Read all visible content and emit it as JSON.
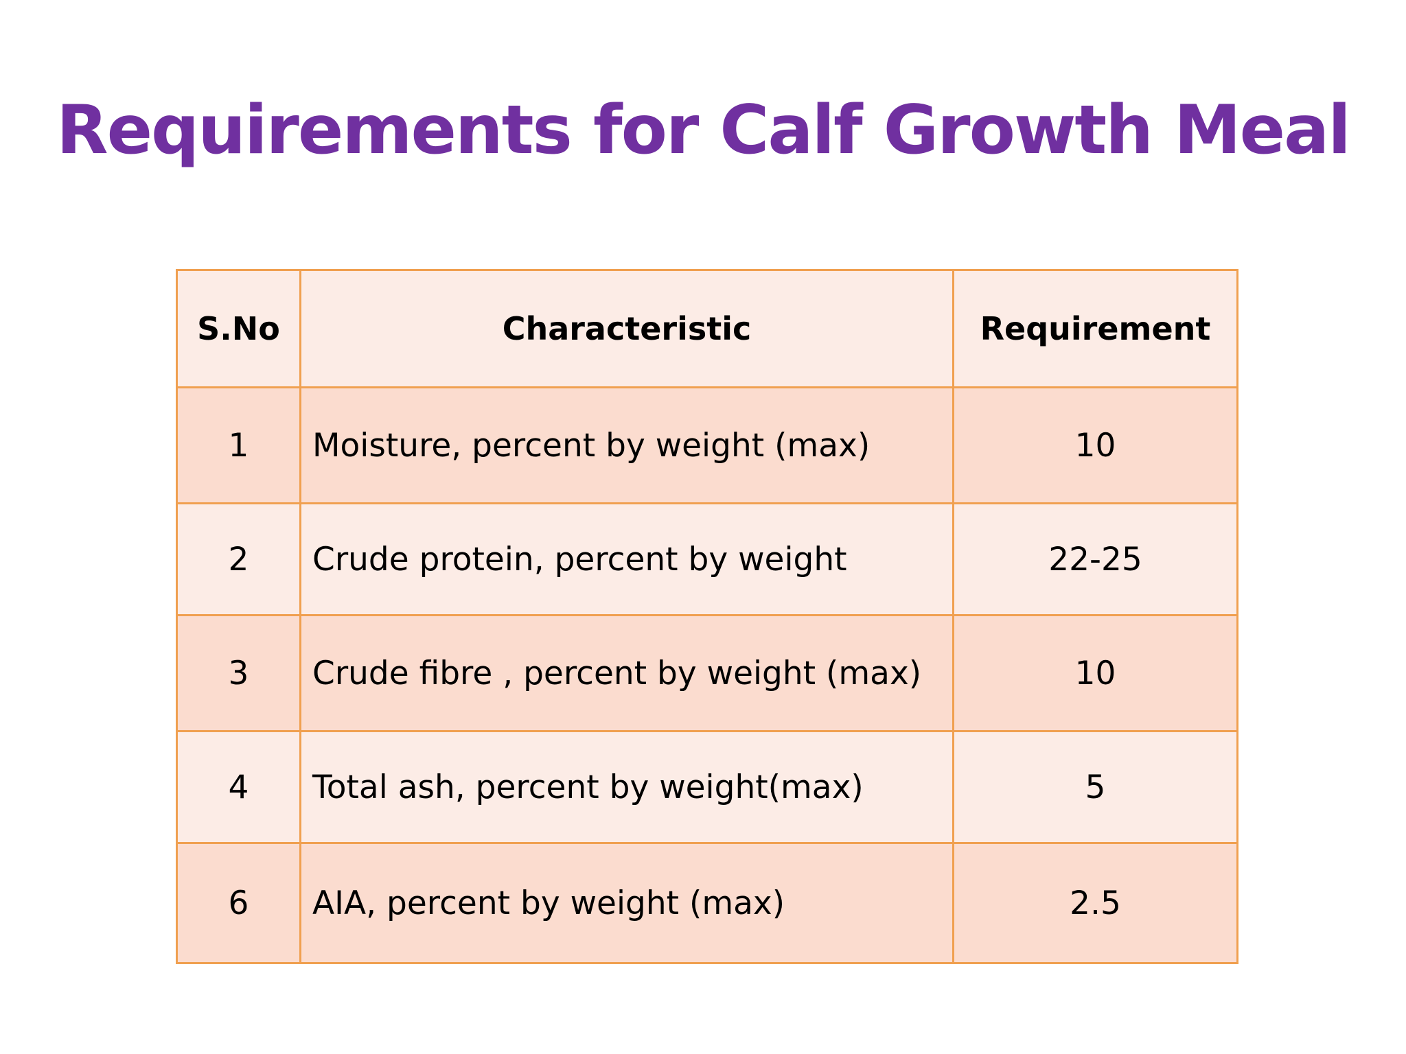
{
  "slide": {
    "title": "Requirements for Calf Growth Meal"
  },
  "table": {
    "headers": {
      "sno": "S.No",
      "characteristic": "Characteristic",
      "requirement": "Requirement"
    },
    "rows": [
      {
        "sno": "1",
        "characteristic": "Moisture, percent by weight (max)",
        "requirement": "10"
      },
      {
        "sno": "2",
        "characteristic": "Crude protein,  percent by weight",
        "requirement": "22-25"
      },
      {
        "sno": "3",
        "characteristic": "Crude fibre ,  percent by weight (max)",
        "requirement": "10"
      },
      {
        "sno": "4",
        "characteristic": "Total ash, percent by weight(max)",
        "requirement": "5"
      },
      {
        "sno": "6",
        "characteristic": "AIA, percent by weight (max)",
        "requirement": "2.5"
      }
    ]
  },
  "colors": {
    "title": "#7030a0",
    "border": "#f0a050",
    "row_dark": "#fbdccf",
    "row_light": "#fcece6"
  }
}
